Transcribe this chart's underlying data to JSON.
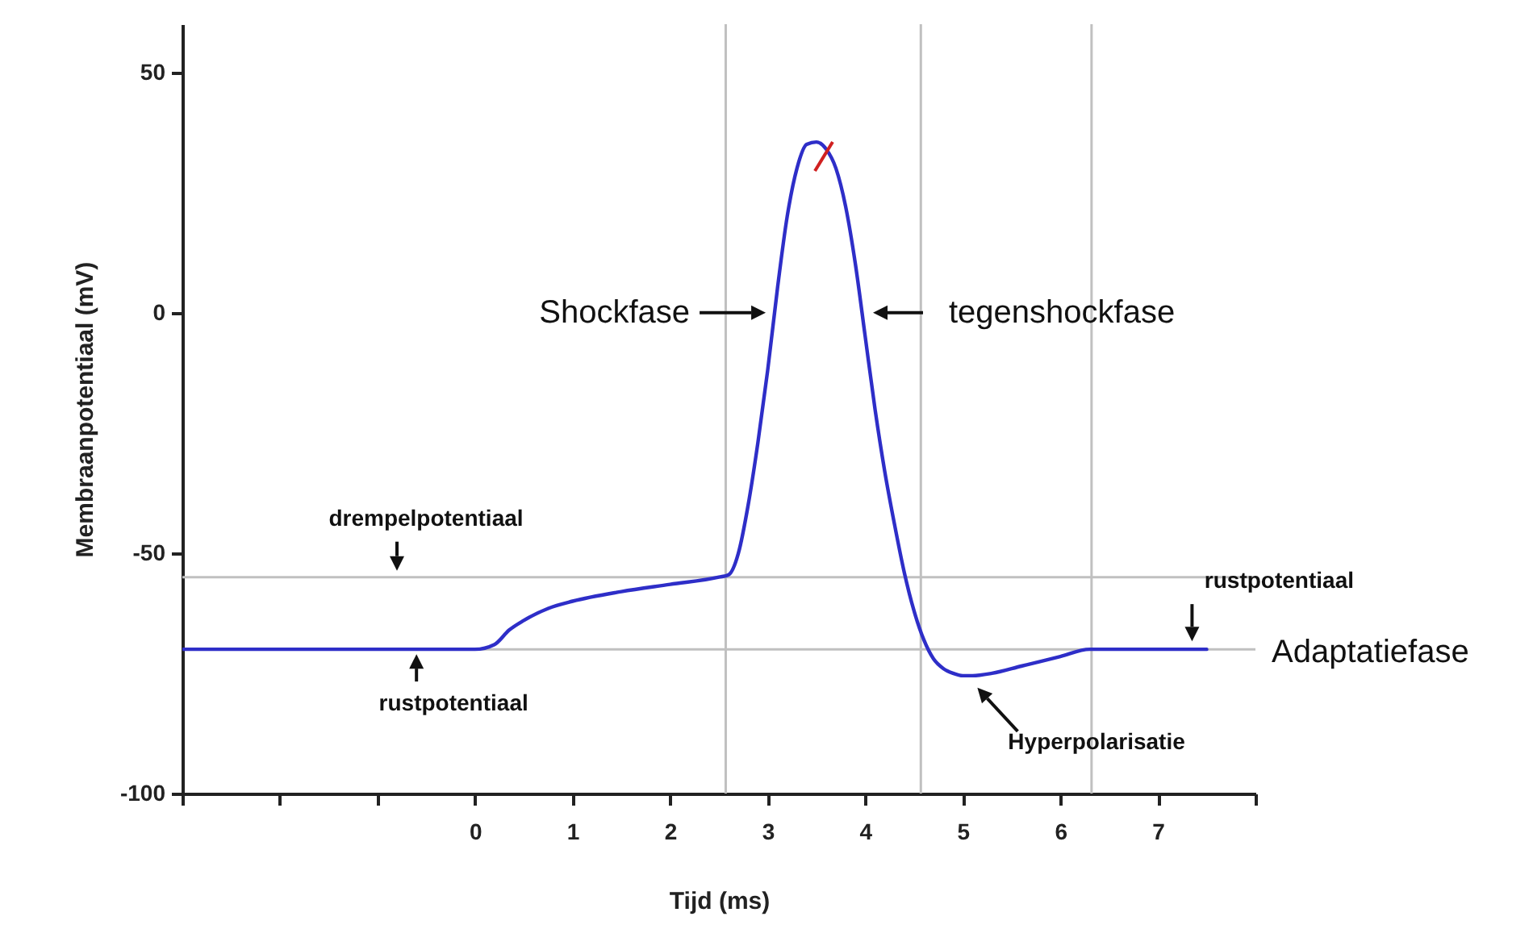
{
  "chart_data": {
    "type": "line",
    "xlabel": "Tijd (ms)",
    "ylabel": "Membraanpotentiaal (mV)",
    "xlim": [
      -3,
      8
    ],
    "ylim": [
      -100,
      60
    ],
    "xticks": [
      {
        "value": -3,
        "label": null
      },
      {
        "value": -2,
        "label": null
      },
      {
        "value": -1,
        "label": null
      },
      0,
      1,
      2,
      3,
      4,
      5,
      6,
      7,
      {
        "value": 8,
        "label": null
      }
    ],
    "yticks": [
      -100,
      -50,
      0,
      50
    ],
    "grid": false,
    "marker": "none",
    "line_style": "solid",
    "series": [
      {
        "color": "#2e2ec8",
        "x": [
          -3,
          -1,
          0,
          0.2,
          0.35,
          0.5,
          0.75,
          1,
          1.5,
          2,
          2.5,
          2.6,
          2.7,
          2.8,
          2.9,
          3.0,
          3.1,
          3.2,
          3.3,
          3.4,
          3.5,
          3.6,
          3.7,
          3.8,
          3.9,
          4.0,
          4.1,
          4.2,
          4.3,
          4.4,
          4.5,
          4.6,
          4.7,
          4.8,
          4.9,
          5.0,
          5.1,
          5.3,
          5.6,
          6.0,
          6.3,
          7.0,
          7.5
        ],
        "values": [
          -70,
          -70,
          -70,
          -69,
          -66,
          -64,
          -61.5,
          -60,
          -58,
          -56.5,
          -55,
          -54.5,
          -50,
          -40,
          -27,
          -12,
          5,
          20,
          30,
          35,
          35.5,
          34,
          30,
          22,
          10,
          -5,
          -20,
          -33,
          -44,
          -54,
          -62,
          -68,
          -72,
          -74,
          -75,
          -75.5,
          -75.5,
          -75,
          -73.5,
          -71.5,
          -70,
          -70,
          -70
        ]
      }
    ],
    "ref_lines": [
      {
        "axis": "y",
        "value": -55,
        "color": "#c0c0c0"
      },
      {
        "axis": "y",
        "value": -70,
        "color": "#c0c0c0"
      },
      {
        "axis": "x",
        "value": 2.57,
        "color": "#c0c0c0"
      },
      {
        "axis": "x",
        "value": 4.57,
        "color": "#c0c0c0"
      },
      {
        "axis": "x",
        "value": 6.32,
        "color": "#c0c0c0"
      }
    ],
    "annotations": [
      {
        "text": "Shockfase",
        "x": 3.03,
        "y": 0
      },
      {
        "text": "tegenshockfase",
        "x": 4.03,
        "y": 0
      },
      {
        "text": "drempelpotentiaal",
        "x": -0.8,
        "y": -55
      },
      {
        "text": "rustpotentiaal",
        "x": -0.6,
        "y": -70
      },
      {
        "text": "rustpotentiaal",
        "x": 7.35,
        "y": -70
      },
      {
        "text": "Adaptatiefase",
        "x": 8,
        "y": -70
      },
      {
        "text": "Hyperpolarisatie",
        "x": 5.1,
        "y": -77
      }
    ]
  }
}
